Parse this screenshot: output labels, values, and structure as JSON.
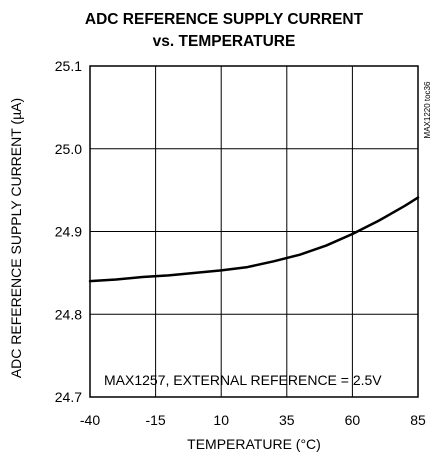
{
  "chart_data": {
    "type": "line",
    "title_line1": "ADC REFERENCE SUPPLY CURRENT",
    "title_line2": "vs. TEMPERATURE",
    "xlabel": "TEMPERATURE (°C)",
    "ylabel": "ADC REFERENCE SUPPLY CURRENT (µA)",
    "annotation": "MAX1257, EXTERNAL REFERENCE = 2.5V",
    "figure_code": "MAX1220 toc36",
    "xlim": [
      -40,
      85
    ],
    "ylim": [
      24.7,
      25.1
    ],
    "x_ticks": [
      -40,
      -15,
      10,
      35,
      60,
      85
    ],
    "x_tick_labels": [
      "-40",
      "-15",
      "10",
      "35",
      "60",
      "85"
    ],
    "y_ticks": [
      24.7,
      24.8,
      24.9,
      25.0,
      25.1
    ],
    "y_tick_labels": [
      "24.7",
      "24.8",
      "24.9",
      "25.0",
      "25.1"
    ],
    "grid": true,
    "line_color": "#000000",
    "series": [
      {
        "x": [
          -40,
          -30,
          -20,
          -10,
          0,
          10,
          20,
          30,
          40,
          50,
          60,
          70,
          80,
          85
        ],
        "y": [
          24.84,
          24.842,
          24.845,
          24.847,
          24.85,
          24.853,
          24.857,
          24.864,
          24.872,
          24.883,
          24.897,
          24.913,
          24.931,
          24.941
        ]
      }
    ]
  }
}
